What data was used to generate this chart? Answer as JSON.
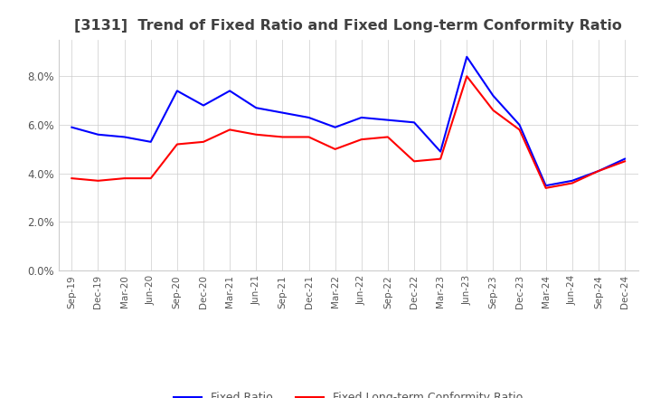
{
  "title": "[3131]  Trend of Fixed Ratio and Fixed Long-term Conformity Ratio",
  "x_labels": [
    "Sep-19",
    "Dec-19",
    "Mar-20",
    "Jun-20",
    "Sep-20",
    "Dec-20",
    "Mar-21",
    "Jun-21",
    "Sep-21",
    "Dec-21",
    "Mar-22",
    "Jun-22",
    "Sep-22",
    "Dec-22",
    "Mar-23",
    "Jun-23",
    "Sep-23",
    "Dec-23",
    "Mar-24",
    "Jun-24",
    "Sep-24",
    "Dec-24"
  ],
  "fixed_ratio": [
    5.9,
    5.6,
    5.5,
    5.3,
    7.4,
    6.8,
    7.4,
    6.7,
    6.5,
    6.3,
    5.9,
    6.3,
    6.2,
    6.1,
    4.9,
    8.8,
    7.2,
    6.0,
    3.5,
    3.7,
    4.1,
    4.6
  ],
  "fixed_lt_ratio": [
    3.8,
    3.7,
    3.8,
    3.8,
    5.2,
    5.3,
    5.8,
    5.6,
    5.5,
    5.5,
    5.0,
    5.4,
    5.5,
    4.5,
    4.6,
    8.0,
    6.6,
    5.8,
    3.4,
    3.6,
    4.1,
    4.5
  ],
  "ylim": [
    0.0,
    9.5
  ],
  "yticks": [
    0.0,
    2.0,
    4.0,
    6.0,
    8.0
  ],
  "line_color_fixed": "#0000ff",
  "line_color_lt": "#ff0000",
  "legend_fixed": "Fixed Ratio",
  "legend_lt": "Fixed Long-term Conformity Ratio",
  "background_color": "#ffffff",
  "grid_color": "#cccccc",
  "title_color": "#404040",
  "title_fontsize": 11.5,
  "tick_color": "#555555",
  "tick_fontsize": 7.5,
  "ytick_fontsize": 8.5
}
